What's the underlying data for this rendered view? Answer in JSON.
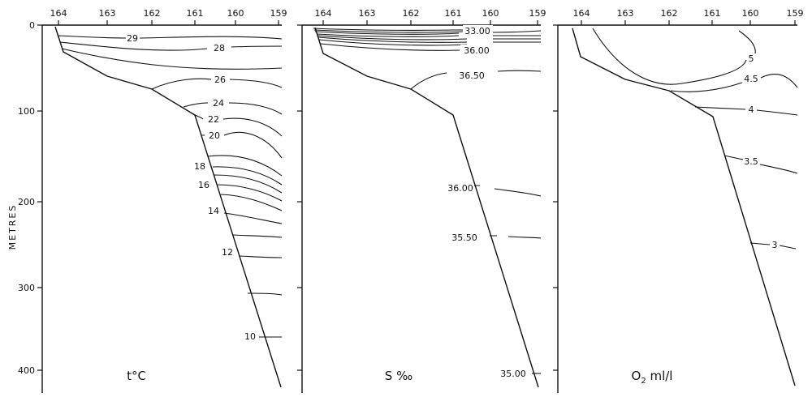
{
  "y_axis": {
    "label": "METRES",
    "ticks": [
      "0",
      "100",
      "200",
      "300",
      "400"
    ]
  },
  "x_axis": {
    "ticks": [
      "164",
      "163",
      "162",
      "161",
      "160",
      "159"
    ]
  },
  "panels": [
    {
      "title": "t°C",
      "contour_labels": [
        "29",
        "28",
        "26",
        "24",
        "22",
        "20",
        "18",
        "16",
        "14",
        "12",
        "10"
      ]
    },
    {
      "title": "S ‰",
      "contour_labels": [
        "33.00",
        "36.00",
        "36.50",
        "36.00",
        "35.50",
        "35.00"
      ]
    },
    {
      "title_main": "O",
      "title_sub": "2",
      "title_rest": " ml/l",
      "contour_labels": [
        "5",
        "4.5",
        "4",
        "3.5",
        "3"
      ]
    }
  ]
}
